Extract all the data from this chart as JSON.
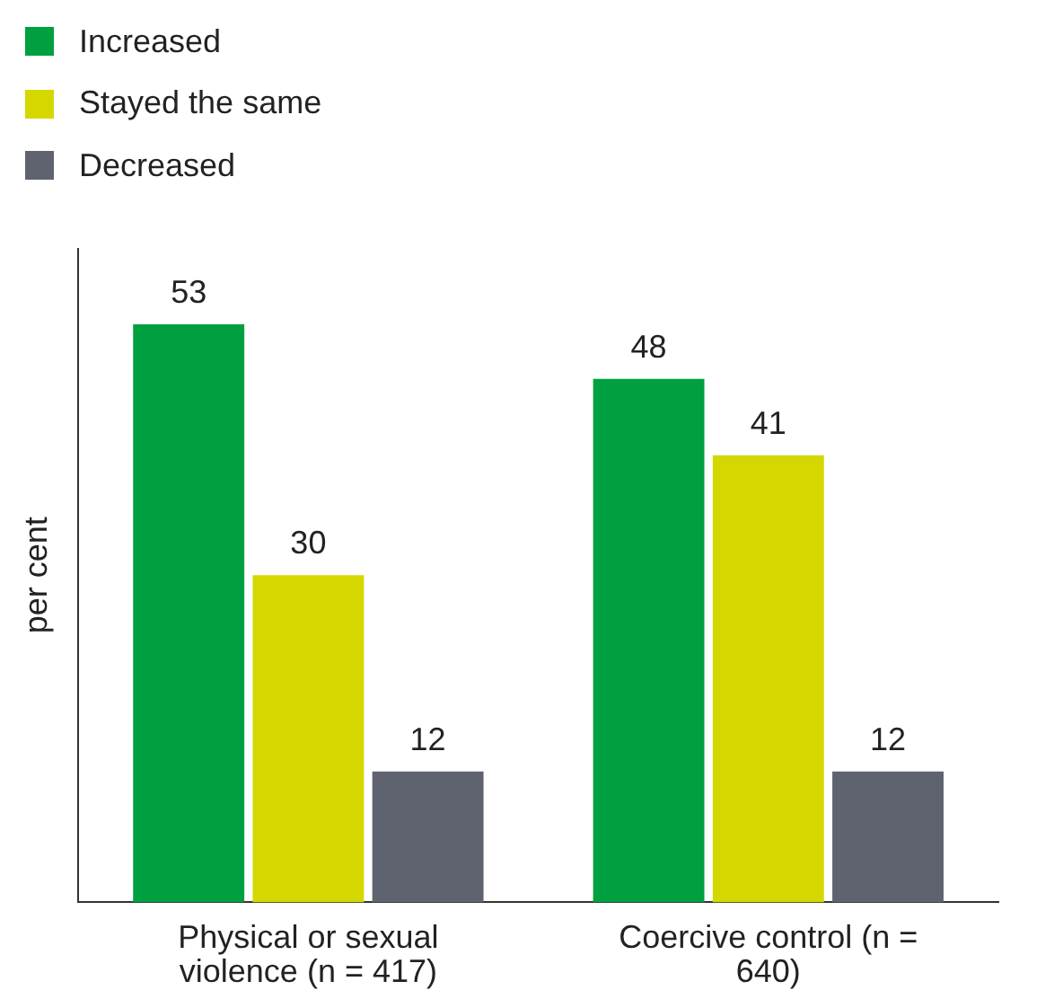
{
  "chart_data": {
    "type": "bar",
    "ylabel": "per cent",
    "categories": [
      "Physical or sexual violence (n = 417)",
      "Coercive control (n = 640)"
    ],
    "series": [
      {
        "name": "Increased",
        "color": "#00a040",
        "values": [
          53,
          48
        ]
      },
      {
        "name": "Stayed the same",
        "color": "#d4d800",
        "values": [
          30,
          41
        ]
      },
      {
        "name": "Decreased",
        "color": "#5f6370",
        "values": [
          12,
          12
        ]
      }
    ],
    "ylim": [
      0,
      60
    ],
    "tick_labels": "x",
    "data_labels": true,
    "legend": "top left",
    "grid": false
  }
}
